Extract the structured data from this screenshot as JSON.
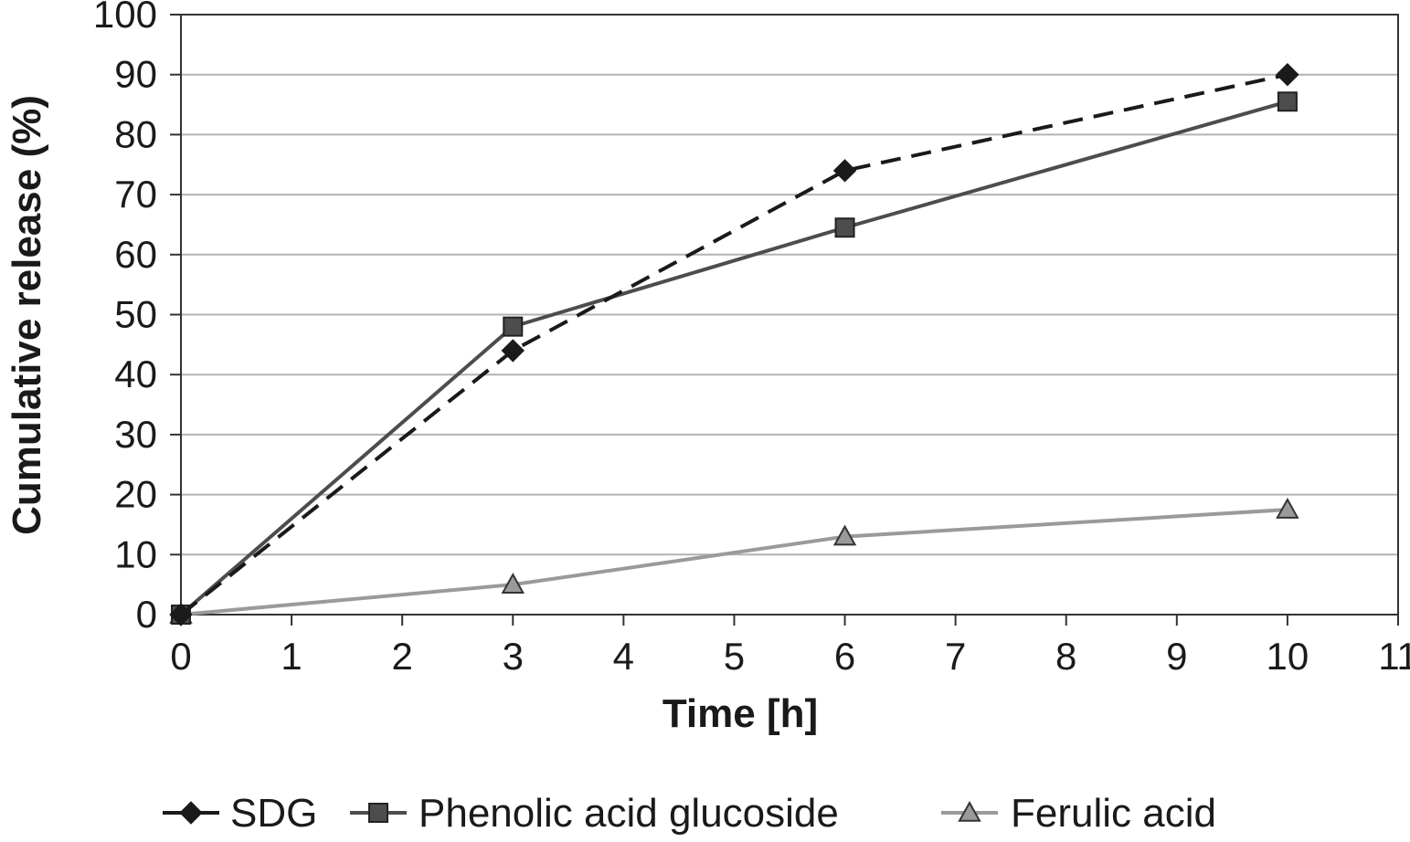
{
  "chart_data": {
    "type": "line",
    "xlabel": "Time [h]",
    "ylabel": "Cumulative release (%)",
    "xlim": [
      0,
      11
    ],
    "ylim": [
      0,
      100
    ],
    "xticks": [
      "0",
      "1",
      "2",
      "3",
      "4",
      "5",
      "6",
      "7",
      "8",
      "9",
      "10",
      "11"
    ],
    "yticks": [
      "0",
      "10",
      "20",
      "30",
      "40",
      "50",
      "60",
      "70",
      "80",
      "90",
      "100"
    ],
    "grid": "horizontal",
    "legend_position": "bottom",
    "x": [
      0,
      3,
      6,
      10
    ],
    "series": [
      {
        "name": "SDG",
        "values": [
          0,
          44,
          74,
          90
        ],
        "marker": "diamond",
        "line": "dashed",
        "color": "#1a1a1a"
      },
      {
        "name": "Phenolic acid glucoside",
        "values": [
          0,
          48,
          64.5,
          85.5
        ],
        "marker": "square",
        "line": "solid",
        "color": "#4d4d4d"
      },
      {
        "name": "Ferulic acid",
        "values": [
          0,
          5,
          13,
          17.5
        ],
        "marker": "triangle",
        "line": "solid",
        "color": "#9a9a9a"
      }
    ]
  }
}
